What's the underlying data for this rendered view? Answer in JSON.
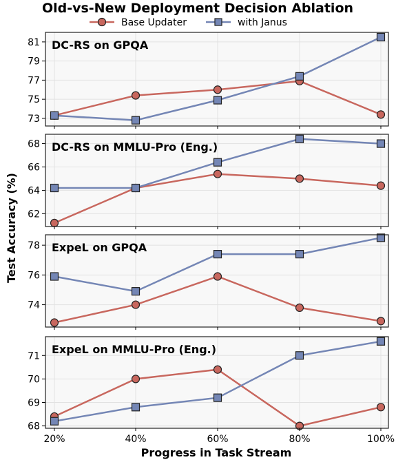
{
  "figure": {
    "title": "Old-vs-New Deployment Decision Ablation",
    "xlabel": "Progress in Task Stream",
    "ylabel": "Test Accuracy (%)"
  },
  "legend": {
    "placement": "top-center",
    "items": [
      {
        "name": "Base Updater",
        "color": "#c8675e",
        "marker": "circle"
      },
      {
        "name": "with Janus",
        "color": "#7486b5",
        "marker": "square"
      }
    ]
  },
  "chart_data": [
    {
      "type": "line",
      "title": "DC-RS on GPQA",
      "categories": [
        "20%",
        "40%",
        "60%",
        "80%",
        "100%"
      ],
      "ylim": [
        72.2,
        82
      ],
      "yticks": [
        73,
        75,
        77,
        79,
        81
      ],
      "grid": true,
      "series": [
        {
          "name": "Base Updater",
          "values": [
            73.3,
            75.4,
            76.0,
            76.9,
            73.4
          ]
        },
        {
          "name": "with Janus",
          "values": [
            73.3,
            72.8,
            74.9,
            77.4,
            81.5
          ]
        }
      ]
    },
    {
      "type": "line",
      "title": "DC-RS on MMLU-Pro (Eng.)",
      "categories": [
        "20%",
        "40%",
        "60%",
        "80%",
        "100%"
      ],
      "ylim": [
        60.9,
        68.8
      ],
      "yticks": [
        62,
        64,
        66,
        68
      ],
      "grid": true,
      "series": [
        {
          "name": "Base Updater",
          "values": [
            61.2,
            64.2,
            65.4,
            65.0,
            64.4
          ]
        },
        {
          "name": "with Janus",
          "values": [
            64.2,
            64.2,
            66.4,
            68.4,
            68.0
          ]
        }
      ]
    },
    {
      "type": "line",
      "title": "ExpeL on GPQA",
      "categories": [
        "20%",
        "40%",
        "60%",
        "80%",
        "100%"
      ],
      "ylim": [
        72.5,
        78.7
      ],
      "yticks": [
        74,
        76,
        78
      ],
      "grid": true,
      "series": [
        {
          "name": "Base Updater",
          "values": [
            72.8,
            74.0,
            75.9,
            73.8,
            72.9
          ]
        },
        {
          "name": "with Janus",
          "values": [
            75.9,
            74.9,
            77.4,
            77.4,
            78.5
          ]
        }
      ]
    },
    {
      "type": "line",
      "title": "ExpeL on MMLU-Pro (Eng.)",
      "categories": [
        "20%",
        "40%",
        "60%",
        "80%",
        "100%"
      ],
      "ylim": [
        67.9,
        71.8
      ],
      "yticks": [
        68,
        69,
        70,
        71
      ],
      "grid": true,
      "series": [
        {
          "name": "Base Updater",
          "values": [
            68.4,
            70.0,
            70.4,
            68.0,
            68.8
          ]
        },
        {
          "name": "with Janus",
          "values": [
            68.2,
            68.8,
            69.2,
            71.0,
            71.6
          ]
        }
      ]
    }
  ]
}
